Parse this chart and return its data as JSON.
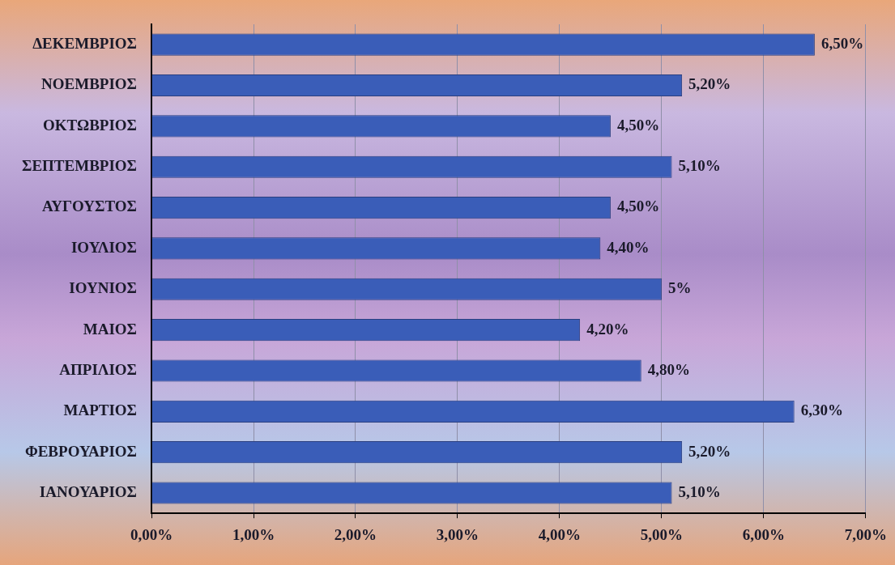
{
  "chart_data": {
    "type": "bar",
    "orientation": "horizontal",
    "categories": [
      "ΔΕΚΕΜΒΡΙΟΣ",
      "ΝΟΕΜΒΡΙΟΣ",
      "ΟΚΤΩΒΡΙΟΣ",
      "ΣΕΠΤΕΜΒΡΙΟΣ",
      "ΑΥΓΟΥΣΤΟΣ",
      "ΙΟΥΛΙΟΣ",
      "ΙΟΥΝΙΟΣ",
      "ΜΑΙΟΣ",
      "ΑΠΡΙΛΙΟΣ",
      "ΜΑΡΤΙΟΣ",
      "ΦΕΒΡΟΥΑΡΙΟΣ",
      "ΙΑΝΟΥΑΡΙΟΣ"
    ],
    "values": [
      6.5,
      5.2,
      4.5,
      5.1,
      4.5,
      4.4,
      5,
      4.2,
      4.8,
      6.3,
      5.2,
      5.1
    ],
    "value_labels": [
      "6,50%",
      "5,20%",
      "4,50%",
      "5,10%",
      "4,50%",
      "4,40%",
      "5%",
      "4,20%",
      "4,80%",
      "6,30%",
      "5,20%",
      "5,10%"
    ],
    "color": "#3a5db8",
    "xlim": [
      0,
      7
    ],
    "xticks": [
      {
        "value": 0,
        "label": "0,00%"
      },
      {
        "value": 1,
        "label": "1,00%"
      },
      {
        "value": 2,
        "label": "2,00%"
      },
      {
        "value": 3,
        "label": "3,00%"
      },
      {
        "value": 4,
        "label": "4,00%"
      },
      {
        "value": 5,
        "label": "5,00%"
      },
      {
        "value": 6,
        "label": "6,00%"
      },
      {
        "value": 7,
        "label": "7,00%"
      }
    ],
    "grid": "x",
    "legend": false
  }
}
